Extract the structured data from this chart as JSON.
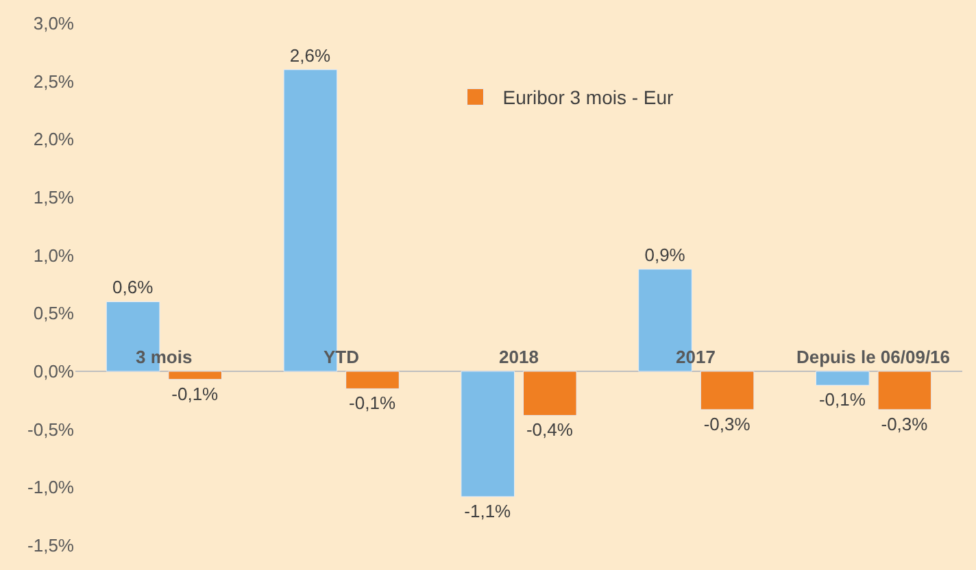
{
  "chart_data": {
    "type": "bar",
    "categories": [
      "3 mois",
      "YTD",
      "2018",
      "2017",
      "Depuis le 06/09/16"
    ],
    "series": [
      {
        "color": "#7dbde8",
        "values": [
          0.6,
          2.6,
          -1.08,
          0.88,
          -0.12
        ],
        "value_labels": [
          "0,6%",
          "2,6%",
          "-1,1%",
          "0,9%",
          "-0,1%"
        ]
      },
      {
        "name": "Euribor 3 mois - Eur",
        "color": "#f07f22",
        "values": [
          -0.07,
          -0.15,
          -0.38,
          -0.33,
          -0.33
        ],
        "value_labels": [
          "-0,1%",
          "-0,1%",
          "-0,4%",
          "-0,3%",
          "-0,3%"
        ]
      }
    ],
    "ylim": [
      -1.5,
      3.0
    ],
    "yticks": [
      {
        "value": -1.5,
        "label": "-1,5%"
      },
      {
        "value": -1.0,
        "label": "-1,0%"
      },
      {
        "value": -0.5,
        "label": "-0,5%"
      },
      {
        "value": 0.0,
        "label": "0,0%"
      },
      {
        "value": 0.5,
        "label": "0,5%"
      },
      {
        "value": 1.0,
        "label": "1,0%"
      },
      {
        "value": 1.5,
        "label": "1,5%"
      },
      {
        "value": 2.0,
        "label": "2,0%"
      },
      {
        "value": 2.5,
        "label": "2,5%"
      },
      {
        "value": 3.0,
        "label": "3,0%"
      }
    ],
    "grid": false,
    "legend": "top"
  }
}
